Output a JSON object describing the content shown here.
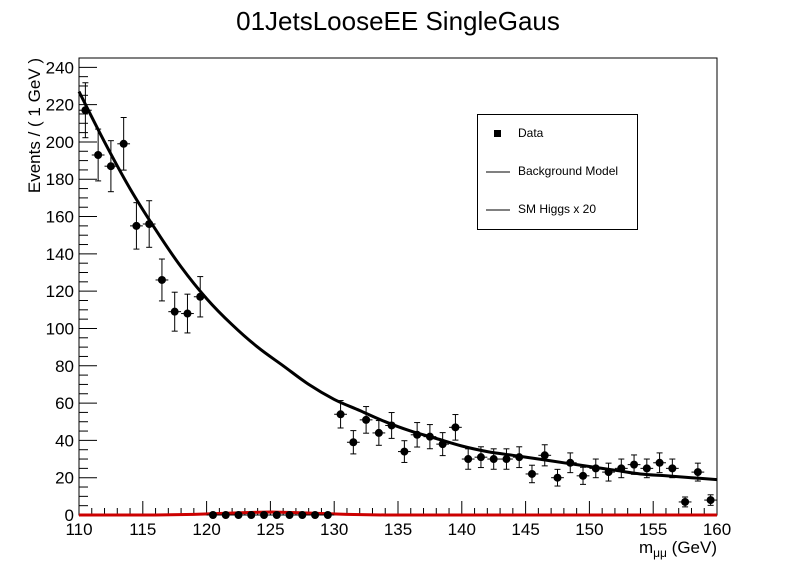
{
  "chart_data": {
    "type": "scatter",
    "title": "01JetsLooseEE SingleGaus",
    "xlabel_base": "m",
    "xlabel_sub": "μμ",
    "xlabel_unit": "(GeV)",
    "ylabel": "Events / ( 1 GeV )",
    "xlim": [
      110,
      160
    ],
    "ylim": [
      0,
      245
    ],
    "x_ticks": [
      "110",
      "115",
      "120",
      "125",
      "130",
      "135",
      "140",
      "145",
      "150",
      "155",
      "160"
    ],
    "y_ticks": [
      "0",
      "20",
      "40",
      "60",
      "80",
      "100",
      "120",
      "140",
      "160",
      "180",
      "200",
      "220",
      "240"
    ],
    "legend": {
      "position": "top-right",
      "entries": [
        {
          "label": "Data",
          "symbol": "marker"
        },
        {
          "label": "Background Model",
          "symbol": "line"
        },
        {
          "label": "SM Higgs x 20",
          "symbol": "line"
        }
      ]
    },
    "colors": {
      "data": "#000000",
      "background": "#000000",
      "signal": "#cc0000"
    },
    "series": [
      {
        "name": "Data",
        "x": [
          110.5,
          111.5,
          112.5,
          113.5,
          114.5,
          115.5,
          116.5,
          117.5,
          118.5,
          119.5,
          120.5,
          121.5,
          122.5,
          123.5,
          124.5,
          125.5,
          126.5,
          127.5,
          128.5,
          129.5,
          130.5,
          131.5,
          132.5,
          133.5,
          134.5,
          135.5,
          136.5,
          137.5,
          138.5,
          139.5,
          140.5,
          141.5,
          142.5,
          143.5,
          144.5,
          145.5,
          146.5,
          147.5,
          148.5,
          149.5,
          150.5,
          151.5,
          152.5,
          153.5,
          154.5,
          155.5,
          156.5,
          157.5,
          158.5,
          159.5
        ],
        "y": [
          217,
          193,
          187,
          199,
          155,
          156,
          126,
          109,
          108,
          117,
          0,
          0,
          0,
          0,
          0,
          0,
          0,
          0,
          0,
          0,
          54,
          39,
          51,
          44,
          48,
          34,
          43,
          42,
          38,
          47,
          30,
          31,
          30,
          30,
          31,
          22,
          32,
          20,
          28,
          21,
          25,
          23,
          25,
          27,
          25,
          28,
          25,
          7,
          23,
          8
        ]
      },
      {
        "name": "Background Model",
        "type": "line",
        "x": [
          110,
          112,
          114,
          116,
          118,
          120,
          122,
          124,
          126,
          128,
          130,
          132,
          134,
          136,
          138,
          140,
          142,
          144,
          146,
          148,
          150,
          152,
          154,
          156,
          158,
          160
        ],
        "y": [
          227,
          200,
          175,
          153,
          133,
          116,
          102,
          90,
          80,
          70,
          62,
          56,
          50,
          45,
          41,
          37,
          34,
          32,
          30,
          28,
          26,
          24,
          22,
          21,
          20,
          19
        ]
      },
      {
        "name": "SM Higgs x 20",
        "type": "line",
        "x": [
          110,
          116,
          119,
          121,
          123,
          125,
          127,
          129,
          131,
          134,
          160
        ],
        "y": [
          0,
          0,
          0.3,
          0.8,
          1.3,
          1.6,
          1.3,
          0.8,
          0.3,
          0,
          0
        ]
      }
    ]
  }
}
